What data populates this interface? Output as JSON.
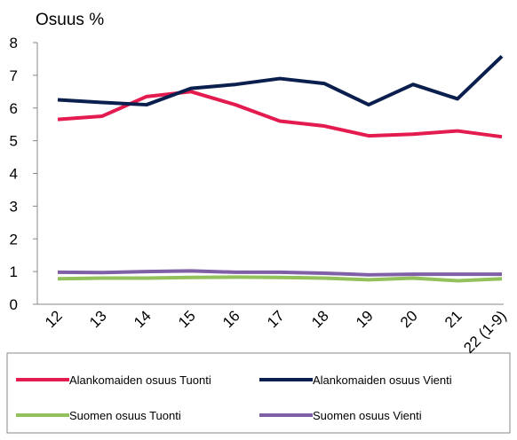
{
  "chart_data": {
    "type": "line",
    "y_label": "Osuus %",
    "categories": [
      "12",
      "13",
      "14",
      "15",
      "16",
      "17",
      "18",
      "19",
      "20",
      "21",
      "22 (1-9)"
    ],
    "series": [
      {
        "name": "Alankomaiden osuus Tuonti",
        "color": "#e31b4f",
        "values": [
          5.65,
          5.75,
          6.35,
          6.5,
          6.1,
          5.6,
          5.45,
          5.15,
          5.2,
          5.3,
          5.12
        ]
      },
      {
        "name": "Alankomaiden osuus Vienti",
        "color": "#0b1f4e",
        "values": [
          6.25,
          6.17,
          6.1,
          6.6,
          6.72,
          6.9,
          6.75,
          6.1,
          6.72,
          6.28,
          7.58
        ]
      },
      {
        "name": "Suomen osuus Tuonti",
        "color": "#92c05a",
        "values": [
          0.78,
          0.8,
          0.8,
          0.82,
          0.83,
          0.82,
          0.8,
          0.75,
          0.8,
          0.72,
          0.78
        ]
      },
      {
        "name": "Suomen osuus Vienti",
        "color": "#7f5fa5",
        "values": [
          0.98,
          0.97,
          1.0,
          1.02,
          0.98,
          0.98,
          0.95,
          0.9,
          0.92,
          0.92,
          0.92
        ]
      }
    ],
    "ylim": [
      0,
      8
    ],
    "yticks": [
      0,
      1,
      2,
      3,
      4,
      5,
      6,
      7,
      8
    ],
    "grid": false
  }
}
